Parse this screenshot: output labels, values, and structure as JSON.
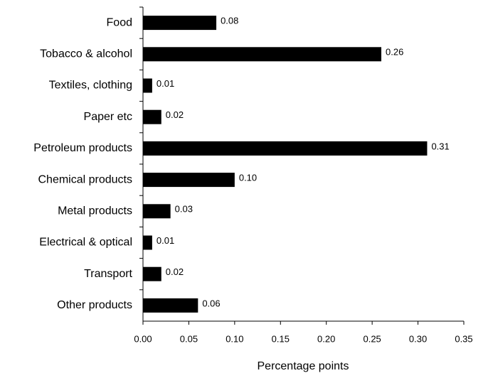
{
  "chart_data": {
    "type": "barh",
    "x_label": "Percentage points",
    "categories": [
      "Food",
      "Tobacco & alcohol",
      "Textiles, clothing",
      "Paper etc",
      "Petroleum products",
      "Chemical products",
      "Metal products",
      "Electrical & optical",
      "Transport",
      "Other products"
    ],
    "values": [
      0.08,
      0.26,
      0.01,
      0.02,
      0.31,
      0.1,
      0.03,
      0.01,
      0.02,
      0.06
    ],
    "value_labels": [
      "0.08",
      "0.26",
      "0.01",
      "0.02",
      "0.31",
      "0.10",
      "0.03",
      "0.01",
      "0.02",
      "0.06"
    ],
    "color": "#000000",
    "xlim": [
      0,
      0.35
    ],
    "xticks": [
      {
        "value": 0,
        "label": "0.00"
      },
      {
        "value": 0.05,
        "label": "0.05"
      },
      {
        "value": 0.1,
        "label": "0.10"
      },
      {
        "value": 0.15,
        "label": "0.15"
      },
      {
        "value": 0.2,
        "label": "0.20"
      },
      {
        "value": 0.25,
        "label": "0.25"
      },
      {
        "value": 0.3,
        "label": "0.30"
      },
      {
        "value": 0.35,
        "label": "0.35"
      }
    ],
    "grid": false
  }
}
